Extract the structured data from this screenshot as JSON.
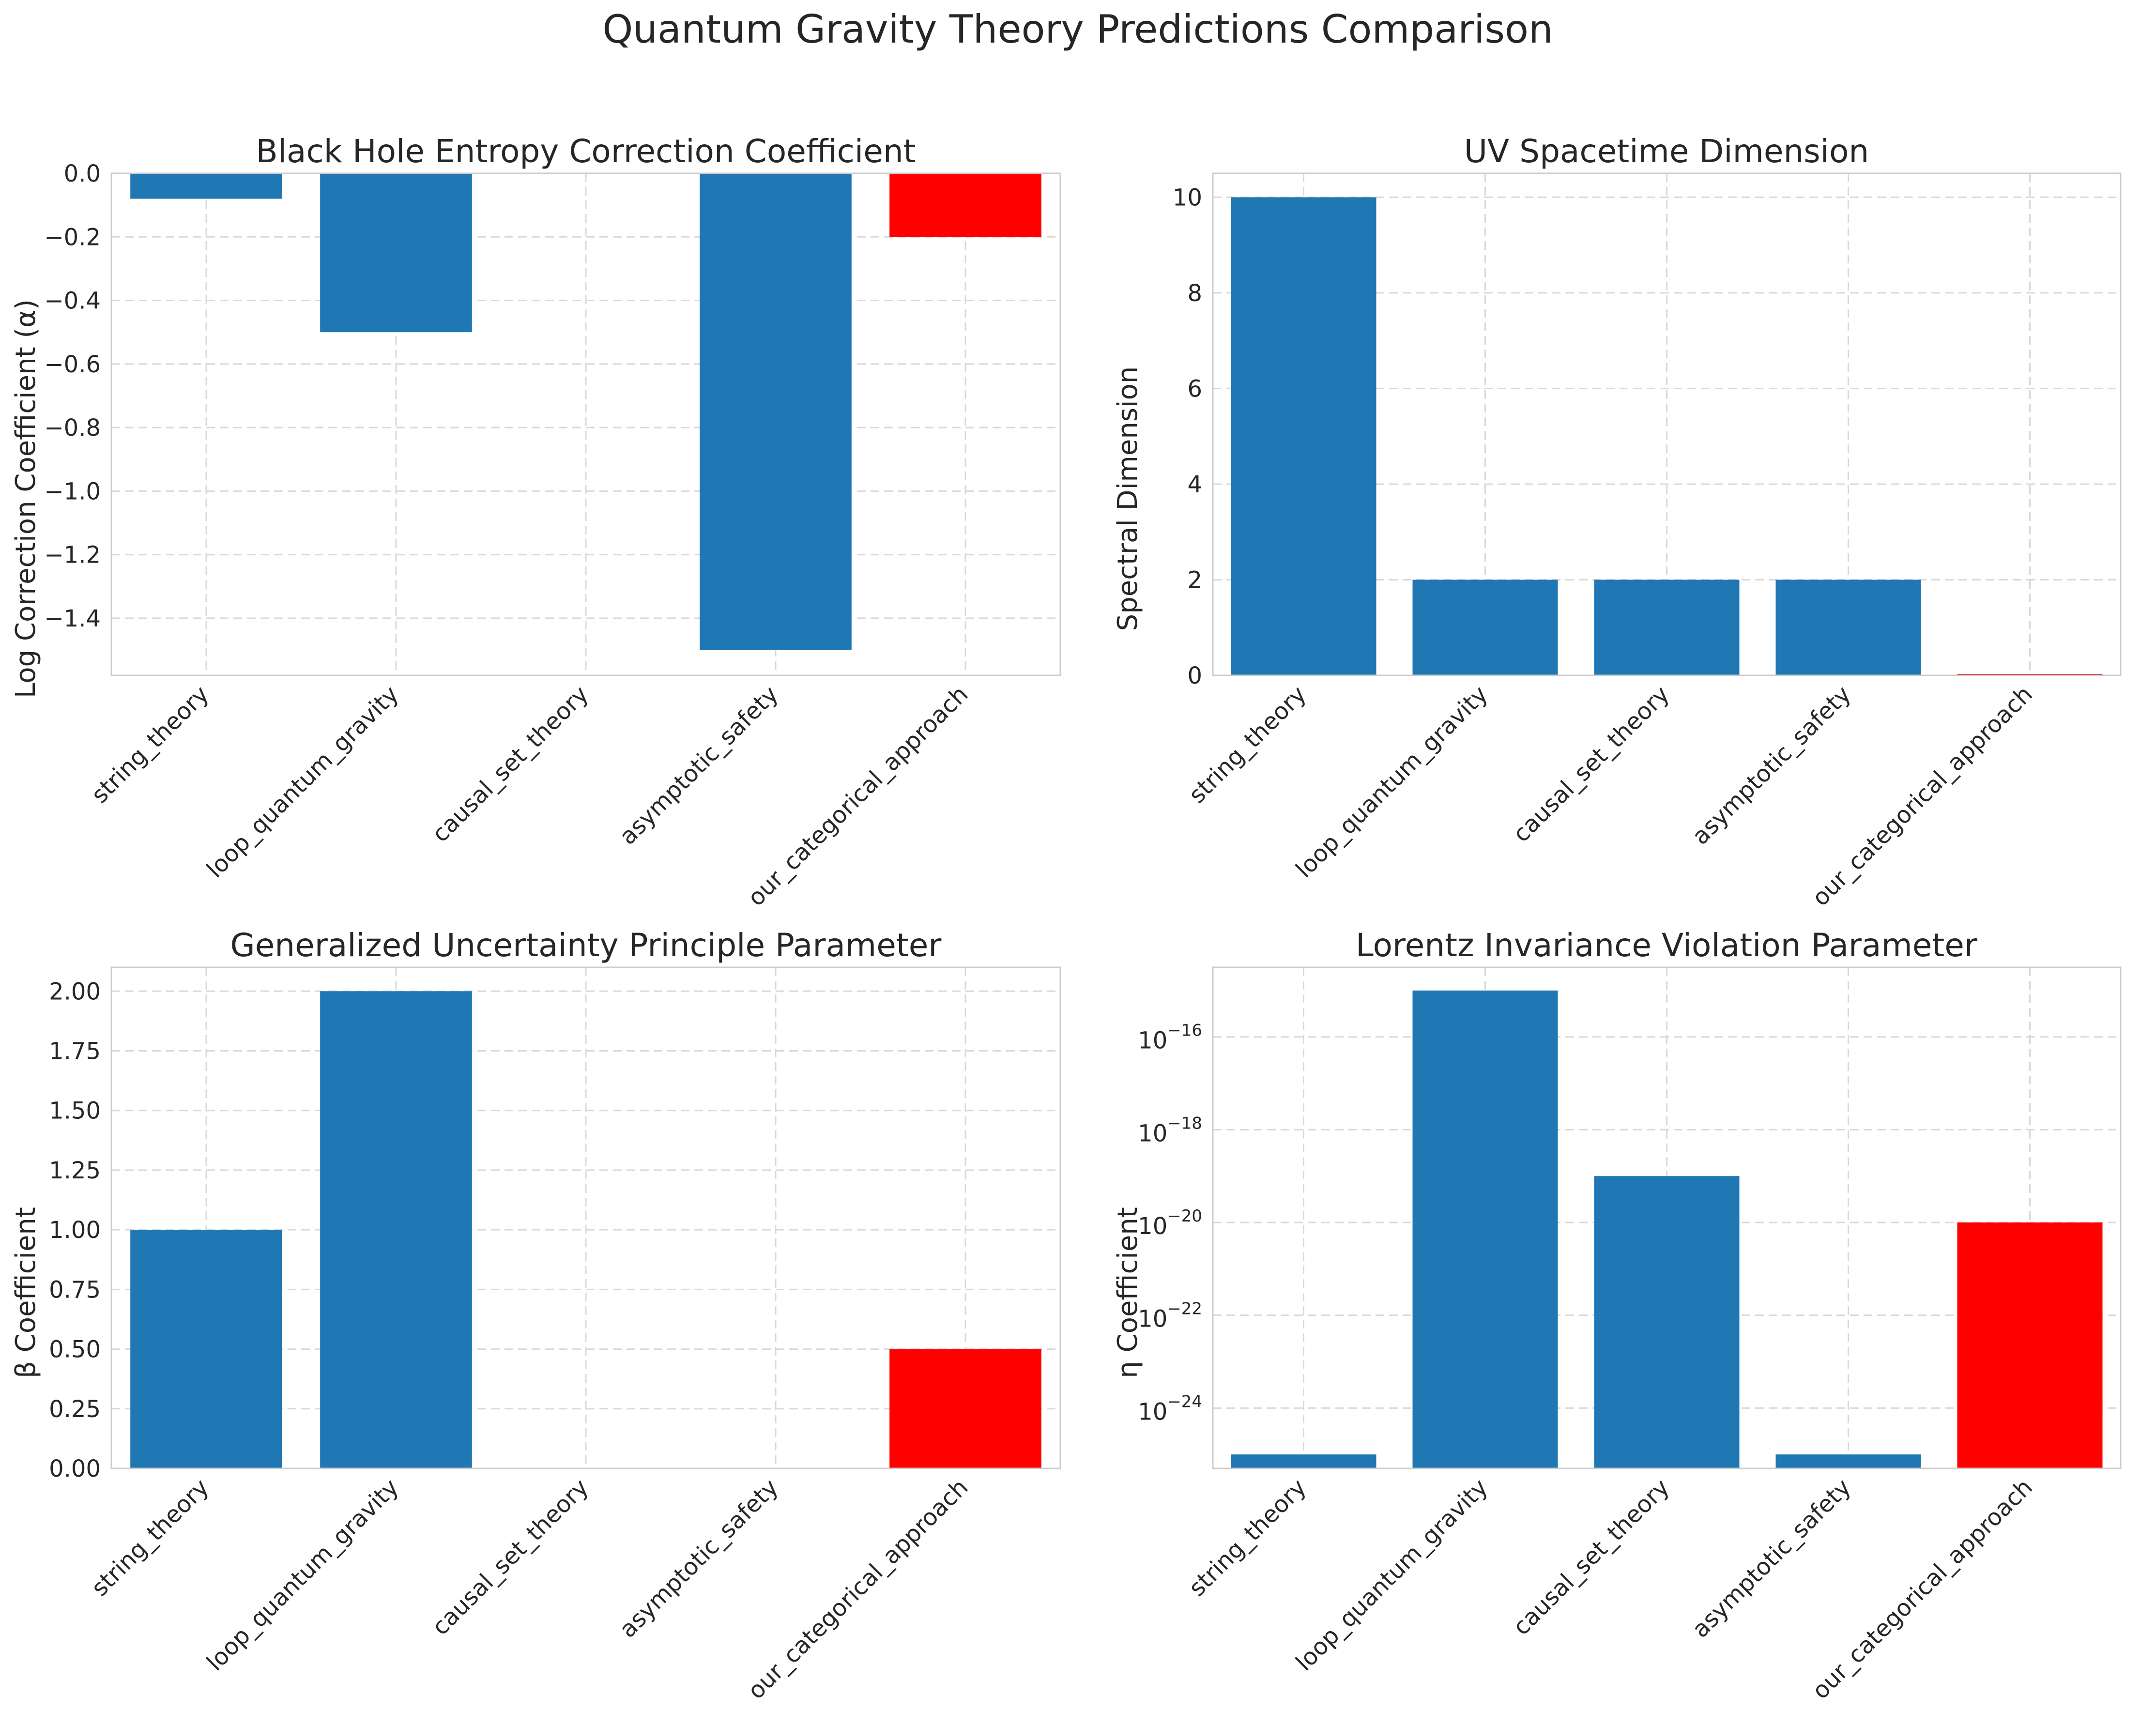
{
  "suptitle": "Quantum Gravity Theory Predictions Comparison",
  "colors": {
    "default_bar": "#1f77b4",
    "highlight_bar": "#ff0000"
  },
  "chart_data": [
    {
      "type": "bar",
      "title": "Black Hole Entropy Correction Coefficient",
      "xlabel": "",
      "ylabel": "Log Correction Coefficient (α)",
      "categories": [
        "string_theory",
        "loop_quantum_gravity",
        "causal_set_theory",
        "asymptotic_safety",
        "our_categorical_approach"
      ],
      "values": [
        -0.08,
        -0.5,
        0,
        -1.5,
        -0.2
      ],
      "highlight_index": 4,
      "ylim": [
        -1.58,
        0.0
      ],
      "yticks": [
        0.0,
        -0.2,
        -0.4,
        -0.6,
        -0.8,
        -1.0,
        -1.2,
        -1.4
      ],
      "ytick_labels": [
        "0.0",
        "−0.2",
        "−0.4",
        "−0.6",
        "−0.8",
        "−1.0",
        "−1.2",
        "−1.4"
      ],
      "yscale": "linear",
      "grid": true
    },
    {
      "type": "bar",
      "title": "UV Spacetime Dimension",
      "xlabel": "",
      "ylabel": "Spectral Dimension",
      "categories": [
        "string_theory",
        "loop_quantum_gravity",
        "causal_set_theory",
        "asymptotic_safety",
        "our_categorical_approach"
      ],
      "values": [
        10,
        2,
        2,
        2,
        0.03
      ],
      "highlight_index": 4,
      "ylim": [
        0,
        10.5
      ],
      "yticks": [
        0,
        2,
        4,
        6,
        8,
        10
      ],
      "ytick_labels": [
        "0",
        "2",
        "4",
        "6",
        "8",
        "10"
      ],
      "yscale": "linear",
      "grid": true
    },
    {
      "type": "bar",
      "title": "Generalized Uncertainty Principle Parameter",
      "xlabel": "",
      "ylabel": "β Coefficient",
      "categories": [
        "string_theory",
        "loop_quantum_gravity",
        "causal_set_theory",
        "asymptotic_safety",
        "our_categorical_approach"
      ],
      "values": [
        1.0,
        2.0,
        0,
        0,
        0.5
      ],
      "highlight_index": 4,
      "ylim": [
        0,
        2.1
      ],
      "yticks": [
        0.0,
        0.25,
        0.5,
        0.75,
        1.0,
        1.25,
        1.5,
        1.75,
        2.0
      ],
      "ytick_labels": [
        "0.00",
        "0.25",
        "0.50",
        "0.75",
        "1.00",
        "1.25",
        "1.50",
        "1.75",
        "2.00"
      ],
      "yscale": "linear",
      "grid": true
    },
    {
      "type": "bar",
      "title": "Lorentz Invariance Violation Parameter",
      "xlabel": "",
      "ylabel": "η Coefficient",
      "categories": [
        "string_theory",
        "loop_quantum_gravity",
        "causal_set_theory",
        "asymptotic_safety",
        "our_categorical_approach"
      ],
      "values": [
        1e-25,
        1e-15,
        1e-19,
        1e-25,
        1e-20
      ],
      "highlight_index": 4,
      "ylim": [
        5e-26,
        3.16e-15
      ],
      "yticks": [
        1e-24,
        1e-22,
        1e-20,
        1e-18,
        1e-16
      ],
      "ytick_labels": [
        {
          "base": "10",
          "exp": "−24"
        },
        {
          "base": "10",
          "exp": "−22"
        },
        {
          "base": "10",
          "exp": "−20"
        },
        {
          "base": "10",
          "exp": "−18"
        },
        {
          "base": "10",
          "exp": "−16"
        }
      ],
      "yscale": "log",
      "grid": true
    }
  ]
}
